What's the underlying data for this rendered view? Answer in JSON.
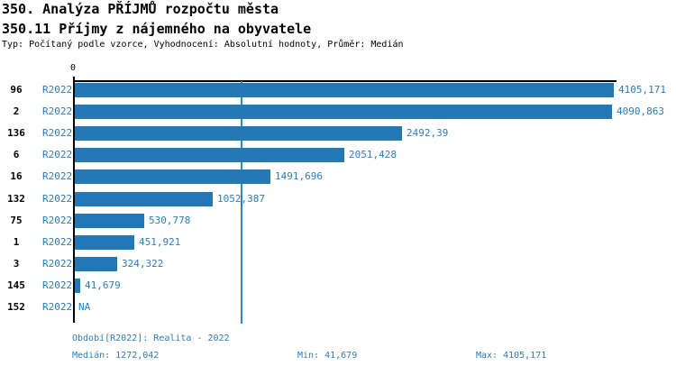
{
  "header": {
    "title": "350. Analýza PŘÍJMŮ rozpočtu města",
    "subtitle": "350.11 Příjmy z nájemného na obyvatele",
    "meta": "Typ: Počítaný podle vzorce, Vyhodnocení: Absolutní hodnoty, Průměr: Medián"
  },
  "chart_data": {
    "type": "bar",
    "orientation": "horizontal",
    "origin_tick_label": "0",
    "period_label": "R2022",
    "categories": [
      "96",
      "2",
      "136",
      "6",
      "16",
      "132",
      "75",
      "1",
      "3",
      "145",
      "152"
    ],
    "values": [
      4105.171,
      4090.863,
      2492.39,
      2051.428,
      1491.696,
      1052.387,
      530.778,
      451.921,
      324.322,
      41.679,
      null
    ],
    "value_labels": [
      "4105,171",
      "4090,863",
      "2492,39",
      "2051,428",
      "1491,696",
      "1052,387",
      "530,778",
      "451,921",
      "324,322",
      "41,679",
      "NA"
    ],
    "xlim": [
      0,
      4128
    ],
    "median": 1272.042,
    "min": 41.679,
    "max": 4105.171,
    "grid": false,
    "bar_color": "#2277b4",
    "median_line_color": "#2e86bb",
    "label_color": "#2b7db6"
  },
  "footer": {
    "period_line": "Období[R2022]: Realita - 2022",
    "median_label": "Medián: 1272,042",
    "min_label": "Min: 41,679",
    "max_label": "Max: 4105,171"
  }
}
